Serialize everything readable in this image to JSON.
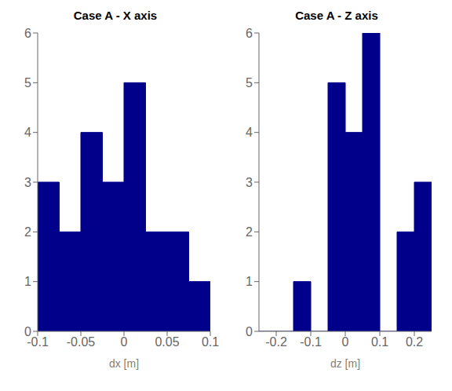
{
  "chart_data": [
    {
      "type": "histogram",
      "title": "Case A - X axis",
      "x_label": "dx [m]",
      "color": "#00008B",
      "grid": false,
      "bins": [
        -0.1,
        -0.075,
        -0.05,
        -0.025,
        0.0,
        0.025,
        0.05,
        0.075,
        0.1
      ],
      "values": [
        3,
        2,
        4,
        3,
        5,
        2,
        2,
        1
      ],
      "xlim": [
        -0.1,
        0.1
      ],
      "xticks": [
        -0.1,
        -0.05,
        0,
        0.05,
        0.1
      ],
      "ylim": [
        0,
        6
      ],
      "yticks": [
        0,
        1,
        2,
        3,
        4,
        5,
        6
      ]
    },
    {
      "type": "histogram",
      "title": "Case A - Z axis",
      "x_label": "dz [m]",
      "color": "#00008B",
      "grid": false,
      "bins": [
        -0.25,
        -0.2,
        -0.15,
        -0.1,
        -0.05,
        0.0,
        0.05,
        0.1,
        0.15,
        0.2,
        0.25
      ],
      "values": [
        0,
        0,
        1,
        0,
        5,
        4,
        6,
        0,
        2,
        3
      ],
      "xlim": [
        -0.25,
        0.25
      ],
      "xticks": [
        -0.2,
        -0.1,
        0,
        0.1,
        0.2
      ],
      "ylim": [
        0,
        6
      ],
      "yticks": [
        0,
        1,
        2,
        3,
        4,
        5,
        6
      ]
    }
  ]
}
